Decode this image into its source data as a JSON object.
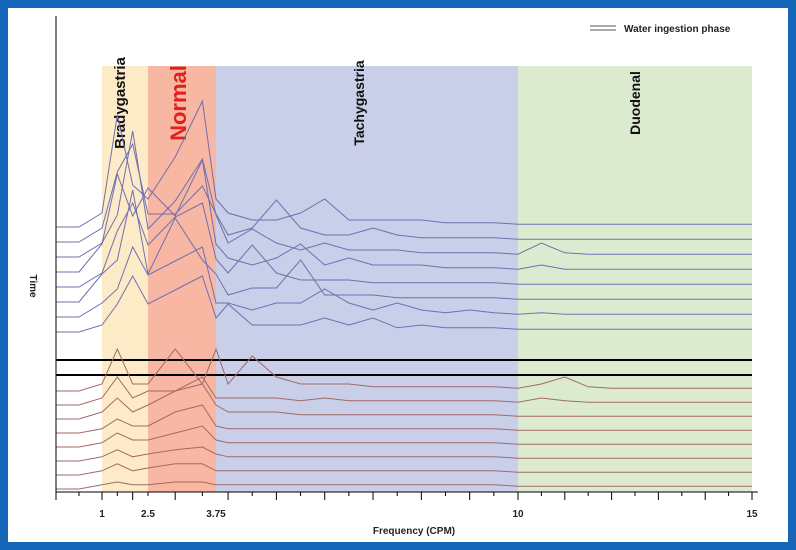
{
  "chart_data": {
    "type": "line",
    "title": "",
    "legend": {
      "label": "Water ingestion phase",
      "position": "top-right"
    },
    "xlabel": "Frequency (CPM)",
    "ylabel": "Time",
    "x_ticks": [
      1,
      2.5,
      3.75,
      10,
      15
    ],
    "xlim": [
      0,
      15
    ],
    "bands": [
      {
        "name": "Bradygastria",
        "from": 1,
        "to": 2.5,
        "color": "#fdebc8",
        "label_color": "#111111"
      },
      {
        "name": "Normal",
        "from": 2.5,
        "to": 3.75,
        "color": "#f7b7a3",
        "label_color": "#e0201b"
      },
      {
        "name": "Tachygastria",
        "from": 3.75,
        "to": 10,
        "color": "#c9cfe9",
        "label_color": "#111111"
      },
      {
        "name": "Duodenal",
        "from": 10,
        "to": 15,
        "color": "#dcebd0",
        "label_color": "#111111"
      }
    ],
    "colors": {
      "before": "#6f6fb0",
      "after": "#a06a66",
      "marker": "#000000"
    },
    "x": [
      0,
      0.5,
      1,
      1.5,
      2,
      2.5,
      3,
      3.5,
      3.75,
      4,
      4.5,
      5,
      5.5,
      6,
      6.5,
      7,
      7.5,
      8,
      8.5,
      9,
      9.5,
      10,
      10.5,
      11,
      11.5,
      12,
      12.5,
      13,
      13.5,
      14,
      14.5,
      15
    ],
    "before_spectra": [
      [
        0,
        0,
        1,
        8,
        3,
        2,
        5,
        9,
        2,
        1,
        0.5,
        0.5,
        1,
        2,
        0.5,
        0.5,
        0.5,
        0.5,
        0.3,
        0.3,
        0.3,
        0.2,
        0.2,
        0.2,
        0.2,
        0.2,
        0.2,
        0.2,
        0.2,
        0.2,
        0.2,
        0.2
      ],
      [
        0,
        0,
        1,
        5,
        7,
        2,
        2,
        4,
        2,
        0.5,
        1,
        3,
        1,
        0.5,
        0.5,
        1,
        0.5,
        0.3,
        0.3,
        0.3,
        0.3,
        0.2,
        0.2,
        0.2,
        0.2,
        0.2,
        0.2,
        0.2,
        0.2,
        0.2,
        0.2,
        0.2
      ],
      [
        0,
        0,
        1,
        3,
        9,
        2,
        4,
        7,
        3,
        1,
        2,
        1,
        0.5,
        1,
        0.5,
        0.5,
        0.5,
        0.3,
        0.3,
        0.3,
        0.3,
        0.2,
        1,
        0.3,
        0.2,
        0.2,
        0.2,
        0.2,
        0.2,
        0.2,
        0.2,
        0.2
      ],
      [
        0,
        0,
        2,
        7,
        4,
        6,
        4,
        8,
        2,
        1,
        0.5,
        1,
        2,
        0.5,
        1,
        0.5,
        0.5,
        0.5,
        0.3,
        0.3,
        0.3,
        0.2,
        0.5,
        0.2,
        0.2,
        0.2,
        0.2,
        0.2,
        0.2,
        0.2,
        0.2,
        0.2
      ],
      [
        0,
        0,
        1,
        4,
        6,
        3,
        5,
        6,
        2,
        1,
        3,
        1,
        0.5,
        0.5,
        0.5,
        0.3,
        0.3,
        0.3,
        0.3,
        0.3,
        0.3,
        0.2,
        0.2,
        0.2,
        0.2,
        0.2,
        0.2,
        0.2,
        0.2,
        0.2,
        0.2,
        0.2
      ],
      [
        0,
        0,
        2,
        3,
        8,
        2,
        6,
        3,
        2,
        0.5,
        1,
        1,
        3,
        0.5,
        0.5,
        0.5,
        0.3,
        0.3,
        0.3,
        0.3,
        0.3,
        0.2,
        0.2,
        0.2,
        0.2,
        0.2,
        0.2,
        0.2,
        0.2,
        0.2,
        0.2,
        0.2
      ],
      [
        0,
        0,
        1,
        2,
        5,
        3,
        4,
        5,
        1,
        1,
        0.5,
        1,
        1,
        2,
        1,
        0.5,
        1,
        0.5,
        0.3,
        0.5,
        0.3,
        0.2,
        0.3,
        0.2,
        0.2,
        0.2,
        0.2,
        0.2,
        0.2,
        0.2,
        0.2,
        0.2
      ],
      [
        0,
        0,
        0.5,
        2,
        4,
        2,
        3,
        4,
        1,
        2,
        0.5,
        0.5,
        0.5,
        1,
        0.5,
        1,
        0.3,
        0.5,
        0.3,
        0.3,
        0.3,
        0.2,
        0.2,
        0.2,
        0.2,
        0.2,
        0.2,
        0.2,
        0.2,
        0.2,
        0.2,
        0.2
      ]
    ],
    "after_spectra": [
      [
        0,
        0,
        0.5,
        3,
        0.5,
        0.5,
        3,
        0.5,
        3,
        0.5,
        2.5,
        1,
        0.5,
        0.5,
        0.5,
        0.3,
        0.3,
        0.3,
        0.3,
        0.3,
        0.3,
        0.2,
        0.5,
        1,
        0.3,
        0.2,
        0.2,
        0.2,
        0.2,
        0.2,
        0.2,
        0.2
      ],
      [
        0,
        0,
        0.5,
        2,
        0.5,
        1,
        1,
        2,
        0.5,
        0.5,
        0.5,
        0.5,
        0.3,
        0.5,
        0.3,
        0.3,
        0.3,
        0.3,
        0.3,
        0.3,
        0.3,
        0.2,
        0.5,
        0.3,
        0.2,
        0.2,
        0.2,
        0.2,
        0.2,
        0.2,
        0.2,
        0.2
      ],
      [
        0,
        0,
        0.5,
        1.5,
        0.5,
        1,
        2,
        2.5,
        1,
        0.5,
        0.5,
        0.5,
        0.3,
        0.3,
        0.3,
        0.3,
        0.3,
        0.3,
        0.3,
        0.3,
        0.3,
        0.2,
        0.2,
        0.2,
        0.2,
        0.2,
        0.2,
        0.2,
        0.2,
        0.2,
        0.2,
        0.2
      ],
      [
        0,
        0,
        0.3,
        1,
        0.5,
        0.5,
        1.5,
        2,
        0.5,
        0.3,
        0.3,
        0.3,
        0.3,
        0.3,
        0.3,
        0.3,
        0.3,
        0.3,
        0.3,
        0.3,
        0.3,
        0.2,
        0.2,
        0.2,
        0.2,
        0.2,
        0.2,
        0.2,
        0.2,
        0.2,
        0.2,
        0.2
      ],
      [
        0,
        0,
        0.3,
        1,
        0.5,
        0.5,
        1,
        1.5,
        0.5,
        0.3,
        0.3,
        0.3,
        0.3,
        0.3,
        0.3,
        0.3,
        0.3,
        0.3,
        0.3,
        0.3,
        0.3,
        0.2,
        0.2,
        0.2,
        0.2,
        0.2,
        0.2,
        0.2,
        0.2,
        0.2,
        0.2,
        0.2
      ],
      [
        0,
        0,
        0.3,
        0.8,
        0.3,
        0.5,
        0.8,
        1,
        0.5,
        0.3,
        0.3,
        0.3,
        0.3,
        0.3,
        0.3,
        0.3,
        0.3,
        0.3,
        0.3,
        0.3,
        0.3,
        0.2,
        0.2,
        0.2,
        0.2,
        0.2,
        0.2,
        0.2,
        0.2,
        0.2,
        0.2,
        0.2
      ],
      [
        0,
        0,
        0.3,
        0.8,
        0.3,
        0.5,
        0.8,
        0.8,
        0.3,
        0.3,
        0.3,
        0.3,
        0.3,
        0.3,
        0.3,
        0.3,
        0.3,
        0.3,
        0.3,
        0.3,
        0.3,
        0.2,
        0.2,
        0.2,
        0.2,
        0.2,
        0.2,
        0.2,
        0.2,
        0.2,
        0.2,
        0.2
      ],
      [
        0,
        0,
        0.3,
        0.5,
        0.3,
        0.3,
        0.5,
        0.5,
        0.3,
        0.3,
        0.3,
        0.3,
        0.3,
        0.3,
        0.3,
        0.3,
        0.3,
        0.3,
        0.3,
        0.3,
        0.3,
        0.2,
        0.2,
        0.2,
        0.2,
        0.2,
        0.2,
        0.2,
        0.2,
        0.2,
        0.2,
        0.2
      ]
    ]
  }
}
